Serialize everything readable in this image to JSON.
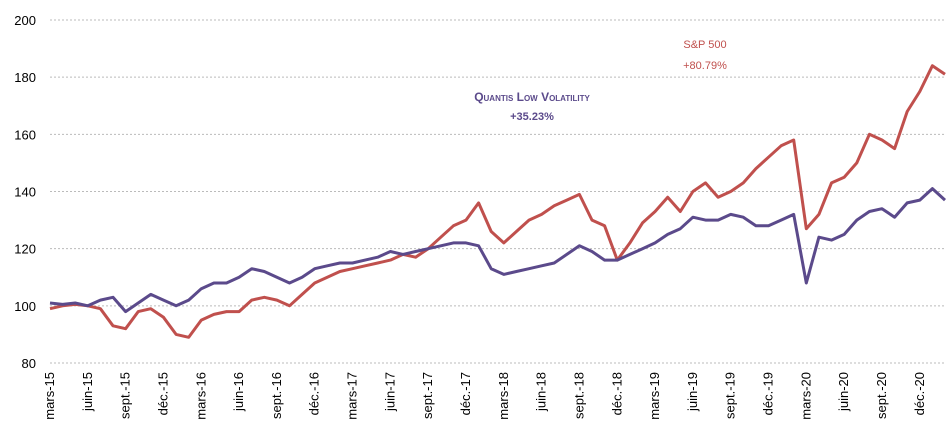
{
  "chart_data": {
    "type": "line",
    "categories": [
      "mars-15",
      null,
      null,
      "juin-15",
      null,
      null,
      "sept.-15",
      null,
      null,
      "déc.-15",
      null,
      null,
      "mars-16",
      null,
      null,
      "juin-16",
      null,
      null,
      "sept.-16",
      null,
      null,
      "déc.-16",
      null,
      null,
      "mars-17",
      null,
      null,
      "juin-17",
      null,
      null,
      "sept.-17",
      null,
      null,
      "déc.-17",
      null,
      null,
      "mars-18",
      null,
      null,
      "juin-18",
      null,
      null,
      "sept.-18",
      null,
      null,
      "déc.-18",
      null,
      null,
      "mars-19",
      null,
      null,
      "juin-19",
      null,
      null,
      "sept.-19",
      null,
      null,
      "déc.-19",
      null,
      null,
      "mars-20",
      null,
      null,
      "juin-20",
      null,
      null,
      "sept.-20",
      null,
      null,
      "déc.-20",
      null,
      null
    ],
    "series": [
      {
        "name": "S&P 500",
        "color": "#c0504d",
        "values": [
          99,
          100,
          100.5,
          100,
          99,
          93,
          92,
          98,
          99,
          96,
          90,
          89,
          95,
          97,
          98,
          98,
          102,
          103,
          102,
          100,
          104,
          108,
          110,
          112,
          113,
          114,
          115,
          116,
          118,
          117,
          120,
          124,
          128,
          130,
          136,
          126,
          122,
          126,
          130,
          132,
          135,
          137,
          139,
          130,
          128,
          116,
          122,
          129,
          133,
          138,
          133,
          140,
          143,
          138,
          140,
          143,
          148,
          152,
          156,
          158,
          127,
          132,
          143,
          145,
          150,
          160,
          158,
          155,
          168,
          175,
          184,
          181
        ]
      },
      {
        "name": "Quantis Low Volatility",
        "color": "#5b4a8b",
        "values": [
          101,
          100.5,
          101,
          100,
          102,
          103,
          98,
          101,
          104,
          102,
          100,
          102,
          106,
          108,
          108,
          110,
          113,
          112,
          110,
          108,
          110,
          113,
          114,
          115,
          115,
          116,
          117,
          119,
          118,
          119,
          120,
          121,
          122,
          122,
          121,
          113,
          111,
          112,
          113,
          114,
          115,
          118,
          121,
          119,
          116,
          116,
          118,
          120,
          122,
          125,
          127,
          131,
          130,
          130,
          132,
          131,
          128,
          128,
          130,
          132,
          108,
          124,
          123,
          125,
          130,
          133,
          134,
          131,
          136,
          137,
          141,
          137
        ]
      }
    ],
    "annotations": [
      {
        "label": "S&P 500",
        "value_label": "+80.79%"
      },
      {
        "label": "Quantis Low Volatility",
        "value_label": "+35.23%"
      }
    ],
    "ylim": [
      80,
      200
    ],
    "yticks": [
      80,
      100,
      120,
      140,
      160,
      180,
      200
    ],
    "grid": true
  }
}
